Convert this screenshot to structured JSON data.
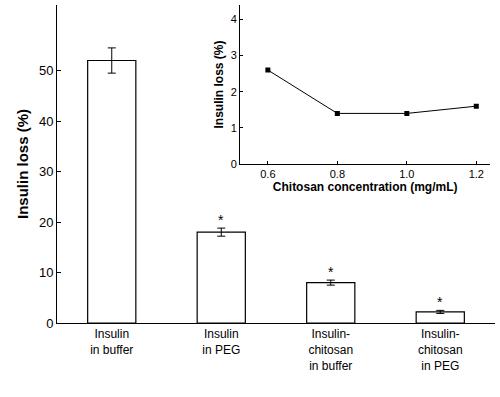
{
  "chart_data": [
    {
      "type": "bar",
      "y_label": "Insulin loss (%)",
      "categories": [
        "Insulin\nin buffer",
        "Insulin\nin PEG",
        "Insulin-\nchitosan\nin buffer",
        "Insulin-\nchitosan\nin PEG"
      ],
      "values": [
        52,
        18,
        8,
        2.2
      ],
      "error_bars": [
        2.5,
        0.8,
        0.5,
        0.3
      ],
      "color": "#ffffff",
      "ylim": [
        0,
        63
      ],
      "yticks": [
        0,
        10,
        20,
        30,
        40,
        50
      ],
      "annotations": [
        {
          "category": "Insulin\nin PEG",
          "text": "*"
        },
        {
          "category": "Insulin-\nchitosan\nin buffer",
          "text": "*"
        },
        {
          "category": "Insulin-\nchitosan\nin PEG",
          "text": "*"
        }
      ]
    },
    {
      "type": "line",
      "x_label": "Chitosan concentration (mg/mL)",
      "y_label": "Insulin loss (%)",
      "x": [
        0.6,
        0.8,
        1.0,
        1.2
      ],
      "values": [
        2.6,
        1.4,
        1.4,
        1.6
      ],
      "color": "#000000",
      "marker": "square",
      "xlim": [
        0.52,
        1.24
      ],
      "xticks": [
        0.6,
        0.8,
        {
          "value": 1.0,
          "label": "1.0"
        },
        1.2
      ],
      "ylim": [
        0,
        4.4
      ],
      "yticks": [
        0,
        1,
        2,
        3,
        4
      ]
    }
  ]
}
